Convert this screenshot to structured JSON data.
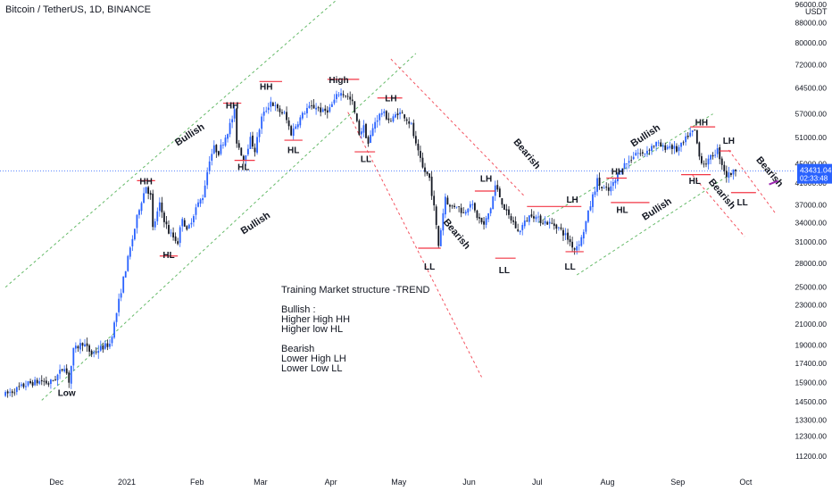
{
  "header": {
    "title": "Bitcoin / TetherUS, 1D, BINANCE",
    "currency": "USDT"
  },
  "notes": [
    "Training Market structure -TREND",
    "",
    "Bullish :",
    "Higher High HH",
    "Higher low HL",
    "",
    "Bearish",
    "Lower High LH",
    "Lower Low LL"
  ],
  "chart_data": {
    "type": "candlestick",
    "symbol": "BTC/USDT",
    "y_scale": "log",
    "ylim": [
      10500,
      98000
    ],
    "yticks": [
      11200,
      12300,
      13300,
      14500,
      15900,
      17400,
      19000,
      21000,
      23000,
      25000,
      28000,
      31000,
      34000,
      37000,
      41000,
      45000,
      51000,
      57000,
      64500,
      72000,
      80000,
      88000,
      96000
    ],
    "ytick_labels": [
      "11200.00",
      "12300.00",
      "13300.00",
      "14500.00",
      "15900.00",
      "17400.00",
      "19000.00",
      "21000.00",
      "23000.00",
      "25000.00",
      "28000.00",
      "31000.00",
      "34000.00",
      "37000.00",
      "41000.00",
      "45000.00",
      "51000.00",
      "57000.00",
      "64500.00",
      "72000.00",
      "80000.00",
      "88000.00",
      "96000.00"
    ],
    "x_ticks": [
      {
        "label": "Dec",
        "x": 0.5
      },
      {
        "label": "2021",
        "x": 31.5
      },
      {
        "label": "Feb",
        "x": 62.5
      },
      {
        "label": "Mar",
        "x": 90.5
      },
      {
        "label": "Apr",
        "x": 121.5
      },
      {
        "label": "May",
        "x": 151.5
      },
      {
        "label": "Jun",
        "x": 182.5
      },
      {
        "label": "Jul",
        "x": 212.5
      },
      {
        "label": "Aug",
        "x": 243.5
      },
      {
        "label": "Sep",
        "x": 274.5
      },
      {
        "label": "Oct",
        "x": 304.5
      }
    ],
    "current_price": {
      "value": 43431.04,
      "label": "43431.04",
      "countdown": "02:33:48",
      "color": "#2962ff"
    },
    "colors": {
      "up": "#2962ff",
      "down": "#131722",
      "bull_channel": "#4caf50",
      "bear_channel": "#f23645",
      "level": "#f23645",
      "grid_line": "#2962ff",
      "bearish_tag": "#9c27b0"
    },
    "price_anchors": [
      [
        -22,
        15000
      ],
      [
        -12,
        15800
      ],
      [
        -6,
        16000
      ],
      [
        -3,
        15800
      ],
      [
        0,
        16200
      ],
      [
        4,
        17200
      ],
      [
        6,
        16000
      ],
      [
        8,
        18500
      ],
      [
        12,
        19200
      ],
      [
        16,
        18200
      ],
      [
        20,
        18700
      ],
      [
        24,
        19100
      ],
      [
        26,
        21000
      ],
      [
        30,
        26000
      ],
      [
        34,
        31500
      ],
      [
        37,
        36500
      ],
      [
        40,
        40500
      ],
      [
        42,
        38500
      ],
      [
        43,
        33000
      ],
      [
        46,
        37000
      ],
      [
        48,
        34500
      ],
      [
        50,
        32500
      ],
      [
        54,
        31000
      ],
      [
        56,
        35000
      ],
      [
        58,
        32500
      ],
      [
        62,
        36500
      ],
      [
        65,
        38500
      ],
      [
        68,
        46000
      ],
      [
        70,
        48500
      ],
      [
        72,
        47500
      ],
      [
        76,
        52500
      ],
      [
        79,
        57500
      ],
      [
        80,
        50000
      ],
      [
        83,
        46000
      ],
      [
        86,
        50500
      ],
      [
        88,
        48000
      ],
      [
        91,
        56000
      ],
      [
        95,
        60500
      ],
      [
        98,
        58000
      ],
      [
        101,
        57000
      ],
      [
        104,
        52000
      ],
      [
        107,
        55000
      ],
      [
        111,
        58500
      ],
      [
        115,
        59000
      ],
      [
        118,
        57500
      ],
      [
        121,
        58500
      ],
      [
        125,
        63000
      ],
      [
        128,
        62500
      ],
      [
        131,
        60000
      ],
      [
        134,
        52000
      ],
      [
        136,
        53500
      ],
      [
        138,
        49500
      ],
      [
        141,
        55000
      ],
      [
        144,
        57500
      ],
      [
        148,
        55000
      ],
      [
        151,
        57500
      ],
      [
        154,
        56500
      ],
      [
        157,
        54000
      ],
      [
        159,
        49000
      ],
      [
        162,
        44000
      ],
      [
        165,
        42000
      ],
      [
        167,
        36500
      ],
      [
        169,
        30500
      ],
      [
        172,
        38500
      ],
      [
        174,
        36500
      ],
      [
        177,
        37000
      ],
      [
        180,
        35500
      ],
      [
        183,
        37500
      ],
      [
        186,
        35000
      ],
      [
        189,
        33500
      ],
      [
        192,
        36500
      ],
      [
        194,
        40500
      ],
      [
        196,
        38500
      ],
      [
        199,
        35500
      ],
      [
        202,
        34000
      ],
      [
        204,
        32500
      ],
      [
        207,
        34000
      ],
      [
        210,
        35500
      ],
      [
        213,
        34500
      ],
      [
        217,
        34000
      ],
      [
        221,
        33500
      ],
      [
        225,
        32000
      ],
      [
        229,
        30000
      ],
      [
        232,
        31500
      ],
      [
        235,
        35500
      ],
      [
        237,
        38500
      ],
      [
        239,
        41500
      ],
      [
        241,
        40000
      ],
      [
        244,
        39500
      ],
      [
        247,
        41500
      ],
      [
        250,
        44500
      ],
      [
        253,
        45500
      ],
      [
        256,
        47500
      ],
      [
        259,
        47000
      ],
      [
        262,
        48500
      ],
      [
        265,
        49500
      ],
      [
        268,
        48500
      ],
      [
        271,
        49000
      ],
      [
        274,
        48000
      ],
      [
        277,
        49500
      ],
      [
        279,
        51500
      ],
      [
        282,
        52500
      ],
      [
        284,
        46500
      ],
      [
        286,
        45000
      ],
      [
        288,
        45500
      ],
      [
        290,
        47000
      ],
      [
        292,
        48000
      ],
      [
        294,
        45000
      ],
      [
        296,
        42500
      ],
      [
        298,
        43000
      ],
      [
        300,
        43431
      ]
    ],
    "annotations": [
      {
        "text": "HH",
        "x": 40,
        "y": 40800
      },
      {
        "text": "HL",
        "x": 50,
        "y": 28700
      },
      {
        "text": "HH",
        "x": 78,
        "y": 58500
      },
      {
        "text": "HL",
        "x": 83,
        "y": 43600
      },
      {
        "text": "HH",
        "x": 93,
        "y": 64000
      },
      {
        "text": "HL",
        "x": 105,
        "y": 47300
      },
      {
        "text": "High",
        "x": 125,
        "y": 66000
      },
      {
        "text": "LH",
        "x": 148,
        "y": 60500
      },
      {
        "text": "LL",
        "x": 137,
        "y": 45300
      },
      {
        "text": "LH",
        "x": 190,
        "y": 41300
      },
      {
        "text": "LL",
        "x": 165,
        "y": 27200
      },
      {
        "text": "LH",
        "x": 228,
        "y": 37400
      },
      {
        "text": "LL",
        "x": 198,
        "y": 26700
      },
      {
        "text": "HH",
        "x": 248,
        "y": 42700
      },
      {
        "text": "HL",
        "x": 250,
        "y": 35600
      },
      {
        "text": "LL",
        "x": 227,
        "y": 27200
      },
      {
        "text": "HH",
        "x": 285,
        "y": 54000
      },
      {
        "text": "HL",
        "x": 282,
        "y": 40900
      },
      {
        "text": "LH",
        "x": 297,
        "y": 49500
      },
      {
        "text": "LL",
        "x": 303,
        "y": 36900
      },
      {
        "text": "Low",
        "x": 5,
        "y": 14900
      }
    ],
    "level_lines": [
      {
        "x1": 36,
        "x2": 44,
        "y": 41500
      },
      {
        "x1": 46,
        "x2": 54,
        "y": 29000
      },
      {
        "x1": 74,
        "x2": 82,
        "y": 60000
      },
      {
        "x1": 79,
        "x2": 88,
        "y": 45700
      },
      {
        "x1": 90,
        "x2": 100,
        "y": 66500
      },
      {
        "x1": 101,
        "x2": 109,
        "y": 50300
      },
      {
        "x1": 120,
        "x2": 134,
        "y": 67200
      },
      {
        "x1": 142,
        "x2": 153,
        "y": 61500
      },
      {
        "x1": 132,
        "x2": 141,
        "y": 47600
      },
      {
        "x1": 185,
        "x2": 194,
        "y": 39500
      },
      {
        "x1": 160,
        "x2": 170,
        "y": 30100
      },
      {
        "x1": 194,
        "x2": 203,
        "y": 28700
      },
      {
        "x1": 208,
        "x2": 232,
        "y": 36700
      },
      {
        "x1": 225,
        "x2": 233,
        "y": 29600
      },
      {
        "x1": 243,
        "x2": 252,
        "y": 42000
      },
      {
        "x1": 245,
        "x2": 262,
        "y": 37400
      },
      {
        "x1": 280,
        "x2": 291,
        "y": 53600
      },
      {
        "x1": 276,
        "x2": 289,
        "y": 42700
      },
      {
        "x1": 293,
        "x2": 298,
        "y": 47800
      },
      {
        "x1": 298,
        "x2": 309,
        "y": 39200
      }
    ],
    "channels": [
      {
        "kind": "bullish",
        "x1": -22,
        "y1": 25000,
        "x2": 124,
        "y2": 98000
      },
      {
        "kind": "bullish",
        "x1": -6,
        "y1": 14600,
        "x2": 159,
        "y2": 76000
      },
      {
        "kind": "bullish",
        "x1": 213,
        "y1": 34000,
        "x2": 290,
        "y2": 57000
      },
      {
        "kind": "bullish",
        "x1": 230,
        "y1": 26500,
        "x2": 297,
        "y2": 42600
      },
      {
        "kind": "bearish",
        "x1": 148,
        "y1": 74000,
        "x2": 207,
        "y2": 38500
      },
      {
        "kind": "bearish",
        "x1": 129,
        "y1": 57500,
        "x2": 188,
        "y2": 16300
      },
      {
        "kind": "bearish",
        "x1": 297,
        "y1": 48000,
        "x2": 318,
        "y2": 35300
      },
      {
        "kind": "bearish",
        "x1": 281,
        "y1": 42600,
        "x2": 304,
        "y2": 31800
      }
    ],
    "channel_labels": [
      {
        "text": "Bullish",
        "kind": "bullish",
        "x": 60,
        "y": 51000,
        "angle": -33
      },
      {
        "text": "Bullish",
        "kind": "bullish",
        "x": 89,
        "y": 33500,
        "angle": -33
      },
      {
        "text": "Bullish",
        "kind": "bullish",
        "x": 261,
        "y": 50800,
        "angle": -33
      },
      {
        "text": "Bullish",
        "kind": "bullish",
        "x": 266,
        "y": 35800,
        "angle": -33
      },
      {
        "text": "Bearish",
        "kind": "bearish",
        "x": 207,
        "y": 46700,
        "angle": 50
      },
      {
        "text": "Bearish",
        "kind": "bearish",
        "x": 176,
        "y": 31900,
        "angle": 50
      },
      {
        "text": "Bearish",
        "kind": "bearish",
        "x": 293,
        "y": 38600,
        "angle": 50
      },
      {
        "text": "Bearish",
        "kind": "bearish_tag",
        "x": 314,
        "y": 42900,
        "angle": 50
      }
    ]
  }
}
